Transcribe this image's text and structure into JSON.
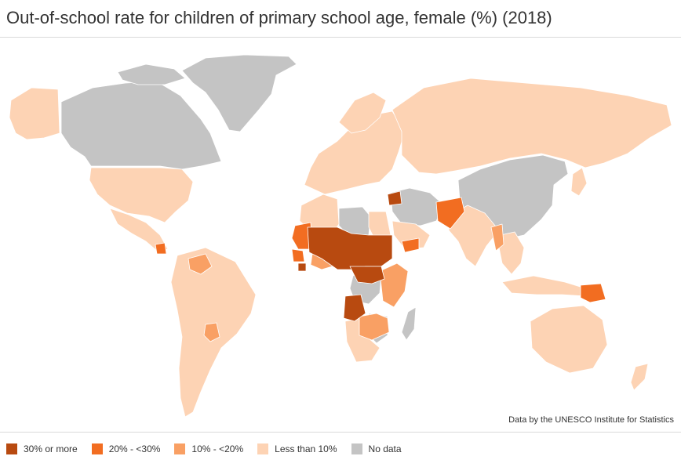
{
  "title": "Out-of-school rate for children of primary school age, female (%) (2018)",
  "source": "Data by the UNESCO Institute for Statistics",
  "legend": [
    {
      "label": "30% or more",
      "color": "#b84a10"
    },
    {
      "label": "20% - <30%",
      "color": "#f26d21"
    },
    {
      "label": "10% - <20%",
      "color": "#f9a064"
    },
    {
      "label": "Less than 10%",
      "color": "#fdd3b4"
    },
    {
      "label": "No data",
      "color": "#c4c4c4"
    }
  ],
  "colors": {
    "c30": "#b84a10",
    "c20": "#f26d21",
    "c10": "#f9a064",
    "clow": "#fdd3b4",
    "nodata": "#c4c4c4",
    "border": "#ffffff"
  }
}
